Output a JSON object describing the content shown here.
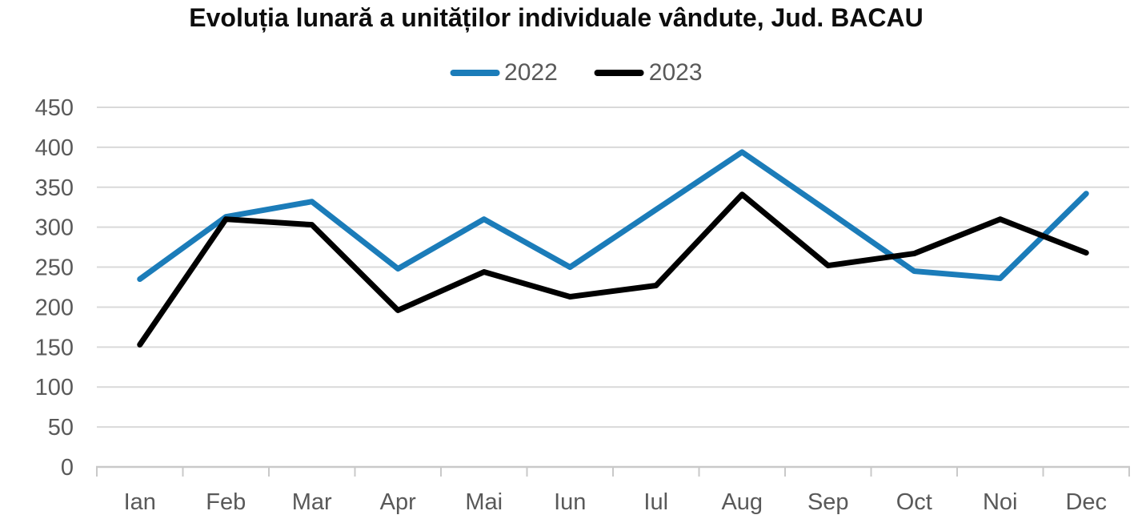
{
  "chart_data": {
    "type": "line",
    "title": "Evoluția lunară a unităților individuale vândute, Jud. BACAU",
    "categories": [
      "Ian",
      "Feb",
      "Mar",
      "Apr",
      "Mai",
      "Iun",
      "Iul",
      "Aug",
      "Sep",
      "Oct",
      "Noi",
      "Dec"
    ],
    "series": [
      {
        "name": "2022",
        "color": "#1b7cb9",
        "values": [
          235,
          313,
          332,
          248,
          310,
          250,
          322,
          394,
          320,
          245,
          236,
          342
        ]
      },
      {
        "name": "2023",
        "color": "#000000",
        "values": [
          153,
          310,
          303,
          196,
          244,
          213,
          227,
          341,
          252,
          267,
          310,
          268
        ]
      }
    ],
    "xlabel": "",
    "ylabel": "",
    "ylim": [
      0,
      450
    ],
    "y_ticks": [
      0,
      50,
      100,
      150,
      200,
      250,
      300,
      350,
      400,
      450
    ],
    "grid": "horizontal",
    "legend_position": "top"
  },
  "styles": {
    "axis_text_color": "#595959",
    "grid_color": "#d9d9d9",
    "axis_line_color": "#c9c9c9",
    "title_color": "#0d0d0d"
  }
}
